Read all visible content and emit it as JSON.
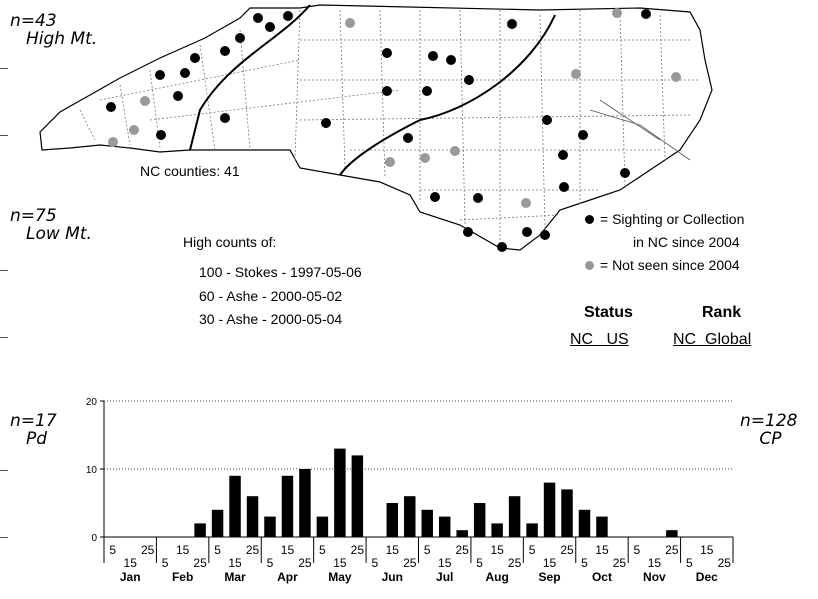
{
  "region_labels": [
    {
      "n": "n=43",
      "name": "High Mt."
    },
    {
      "n": "n=75",
      "name": "Low Mt."
    },
    {
      "n": "n=17",
      "name": "Pd"
    },
    {
      "n": "n=128",
      "name": "CP"
    }
  ],
  "map": {
    "counties_label": "NC counties: 41",
    "high_counts_title": "High counts of:",
    "high_counts": [
      "100 - Stokes - 1997-05-06",
      "60 - Ashe - 2000-05-02",
      "30 - Ashe - 2000-05-04"
    ],
    "legend": [
      {
        "color": "#000000",
        "text": "= Sighting or Collection",
        "text2": "in NC since 2004"
      },
      {
        "color": "#999999",
        "text": "= Not seen since 2004"
      }
    ],
    "status_header": "Status",
    "rank_header": "Rank",
    "status_cols": "NC   US",
    "rank_cols": "NC  Global"
  },
  "chart_data": {
    "type": "bar",
    "ylim": [
      0,
      20
    ],
    "yticks": [
      0,
      10,
      20
    ],
    "grid": true,
    "months": [
      "Jan",
      "Feb",
      "Mar",
      "Apr",
      "May",
      "Jun",
      "Jul",
      "Aug",
      "Sep",
      "Oct",
      "Nov",
      "Dec"
    ],
    "period_labels": [
      "5",
      "15",
      "25"
    ],
    "values": [
      0,
      0,
      0,
      0,
      0,
      2,
      4,
      9,
      6,
      3,
      9,
      10,
      3,
      13,
      12,
      0,
      5,
      6,
      4,
      3,
      1,
      5,
      2,
      6,
      2,
      8,
      7,
      4,
      3,
      0,
      0,
      0,
      1,
      0,
      0,
      0
    ]
  }
}
